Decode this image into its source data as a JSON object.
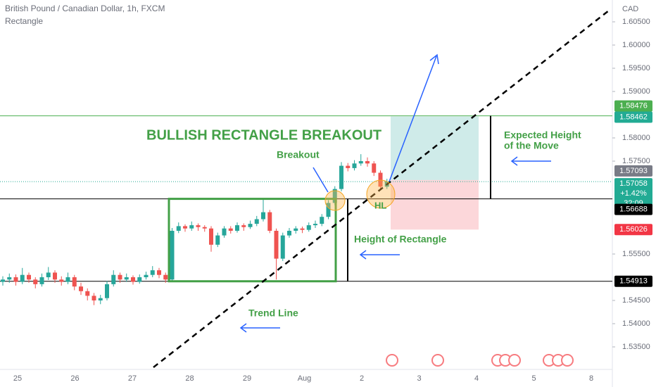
{
  "chart_data": {
    "type": "candlestick",
    "title": "British Pound / Canadian Dollar, 1h, FXCM",
    "subtitle": "Rectangle",
    "currency": "CAD",
    "up_color": "#26a69a",
    "down_color": "#ef5350",
    "ylim": [
      1.53015,
      1.6097
    ],
    "yticks": [
      {
        "value": 1.535,
        "label": "1.53500"
      },
      {
        "value": 1.54,
        "label": "1.54000"
      },
      {
        "value": 1.545,
        "label": "1.54500"
      },
      {
        "value": 1.555,
        "label": "1.55500"
      },
      {
        "value": 1.575,
        "label": "1.57500"
      },
      {
        "value": 1.58,
        "label": "1.58000"
      },
      {
        "value": 1.59,
        "label": "1.59000"
      },
      {
        "value": 1.595,
        "label": "1.59500"
      },
      {
        "value": 1.6,
        "label": "1.60000"
      },
      {
        "value": 1.605,
        "label": "1.60500"
      }
    ],
    "categories": [
      "25",
      "26",
      "27",
      "28",
      "29",
      "Aug",
      "2",
      "3",
      "4",
      "5",
      "8"
    ],
    "ohlc": [
      [
        1.549,
        1.5502,
        1.5482,
        1.5495
      ],
      [
        1.5495,
        1.5508,
        1.5488,
        1.55
      ],
      [
        1.55,
        1.5506,
        1.5482,
        1.549
      ],
      [
        1.549,
        1.552,
        1.5485,
        1.5505
      ],
      [
        1.5505,
        1.551,
        1.5488,
        1.5495
      ],
      [
        1.5495,
        1.55,
        1.5476,
        1.5485
      ],
      [
        1.5485,
        1.5508,
        1.548,
        1.55
      ],
      [
        1.55,
        1.5522,
        1.5494,
        1.551
      ],
      [
        1.551,
        1.5515,
        1.5488,
        1.5495
      ],
      [
        1.5495,
        1.5502,
        1.5482,
        1.549
      ],
      [
        1.549,
        1.551,
        1.5485,
        1.55
      ],
      [
        1.55,
        1.5505,
        1.5472,
        1.548
      ],
      [
        1.548,
        1.5488,
        1.5462,
        1.547
      ],
      [
        1.547,
        1.5476,
        1.545,
        1.546
      ],
      [
        1.546,
        1.5466,
        1.544,
        1.545
      ],
      [
        1.545,
        1.5462,
        1.5442,
        1.5455
      ],
      [
        1.5455,
        1.5492,
        1.545,
        1.5485
      ],
      [
        1.5485,
        1.5515,
        1.548,
        1.5505
      ],
      [
        1.5505,
        1.551,
        1.5488,
        1.5495
      ],
      [
        1.5495,
        1.5508,
        1.549,
        1.55
      ],
      [
        1.55,
        1.5504,
        1.5484,
        1.549
      ],
      [
        1.549,
        1.5506,
        1.5486,
        1.55
      ],
      [
        1.55,
        1.5512,
        1.5495,
        1.5505
      ],
      [
        1.5505,
        1.5524,
        1.55,
        1.5515
      ],
      [
        1.5515,
        1.552,
        1.5498,
        1.5505
      ],
      [
        1.5505,
        1.551,
        1.5488,
        1.5495
      ],
      [
        1.5495,
        1.5606,
        1.5492,
        1.56
      ],
      [
        1.56,
        1.5618,
        1.5595,
        1.561
      ],
      [
        1.561,
        1.5614,
        1.5598,
        1.5605
      ],
      [
        1.5605,
        1.562,
        1.56,
        1.5612
      ],
      [
        1.5612,
        1.5616,
        1.56,
        1.5608
      ],
      [
        1.5608,
        1.5612,
        1.5598,
        1.5605
      ],
      [
        1.5605,
        1.561,
        1.5555,
        1.557
      ],
      [
        1.557,
        1.5596,
        1.5565,
        1.559
      ],
      [
        1.559,
        1.561,
        1.5585,
        1.5605
      ],
      [
        1.5605,
        1.561,
        1.5594,
        1.56
      ],
      [
        1.56,
        1.5618,
        1.5596,
        1.5612
      ],
      [
        1.5612,
        1.5616,
        1.56,
        1.5608
      ],
      [
        1.5608,
        1.5622,
        1.5604,
        1.5615
      ],
      [
        1.5615,
        1.5632,
        1.561,
        1.5625
      ],
      [
        1.5625,
        1.5668,
        1.562,
        1.564
      ],
      [
        1.564,
        1.5645,
        1.5595,
        1.56
      ],
      [
        1.56,
        1.5605,
        1.5495,
        1.554
      ],
      [
        1.554,
        1.5596,
        1.5535,
        1.559
      ],
      [
        1.559,
        1.5606,
        1.5585,
        1.56
      ],
      [
        1.56,
        1.561,
        1.5594,
        1.5605
      ],
      [
        1.5605,
        1.5609,
        1.5595,
        1.5602
      ],
      [
        1.5602,
        1.5618,
        1.5598,
        1.5612
      ],
      [
        1.5612,
        1.5622,
        1.5606,
        1.5615
      ],
      [
        1.5615,
        1.5636,
        1.561,
        1.563
      ],
      [
        1.563,
        1.5666,
        1.5625,
        1.566
      ],
      [
        1.566,
        1.5696,
        1.5655,
        1.569
      ],
      [
        1.569,
        1.5748,
        1.5685,
        1.574
      ],
      [
        1.574,
        1.5746,
        1.5728,
        1.5735
      ],
      [
        1.5735,
        1.5752,
        1.573,
        1.5745
      ],
      [
        1.5745,
        1.5765,
        1.574,
        1.575
      ],
      [
        1.575,
        1.5758,
        1.5738,
        1.5745
      ],
      [
        1.5745,
        1.575,
        1.5718,
        1.5725
      ],
      [
        1.5725,
        1.573,
        1.5688,
        1.5695
      ],
      [
        1.5695,
        1.5712,
        1.569,
        1.5706
      ]
    ],
    "resistance": {
      "value": 1.58476,
      "color": "#4caf50"
    },
    "target": {
      "value": 1.58462,
      "color": "#22ab94"
    },
    "entry": {
      "value": 1.57093,
      "color": "#787b86"
    },
    "current": {
      "value": 1.57058,
      "change": "+1.42%",
      "countdown": "32:09",
      "color": "#22ab94"
    },
    "rectangle_top": {
      "value": 1.56688,
      "color": "#000000"
    },
    "stop": {
      "value": 1.56026,
      "color": "#f23645"
    },
    "rectangle_bottom": {
      "value": 1.54913,
      "color": "#000000"
    },
    "annotations": {
      "headline": "BULLISH RECTANGLE BREAKOUT",
      "breakout": "Breakout",
      "higher_low": "HL",
      "rect_height": "Height of Rectangle",
      "move_line1": "Expected Height",
      "move_line2": "of the Move",
      "trend_line": "Trend Line"
    }
  }
}
